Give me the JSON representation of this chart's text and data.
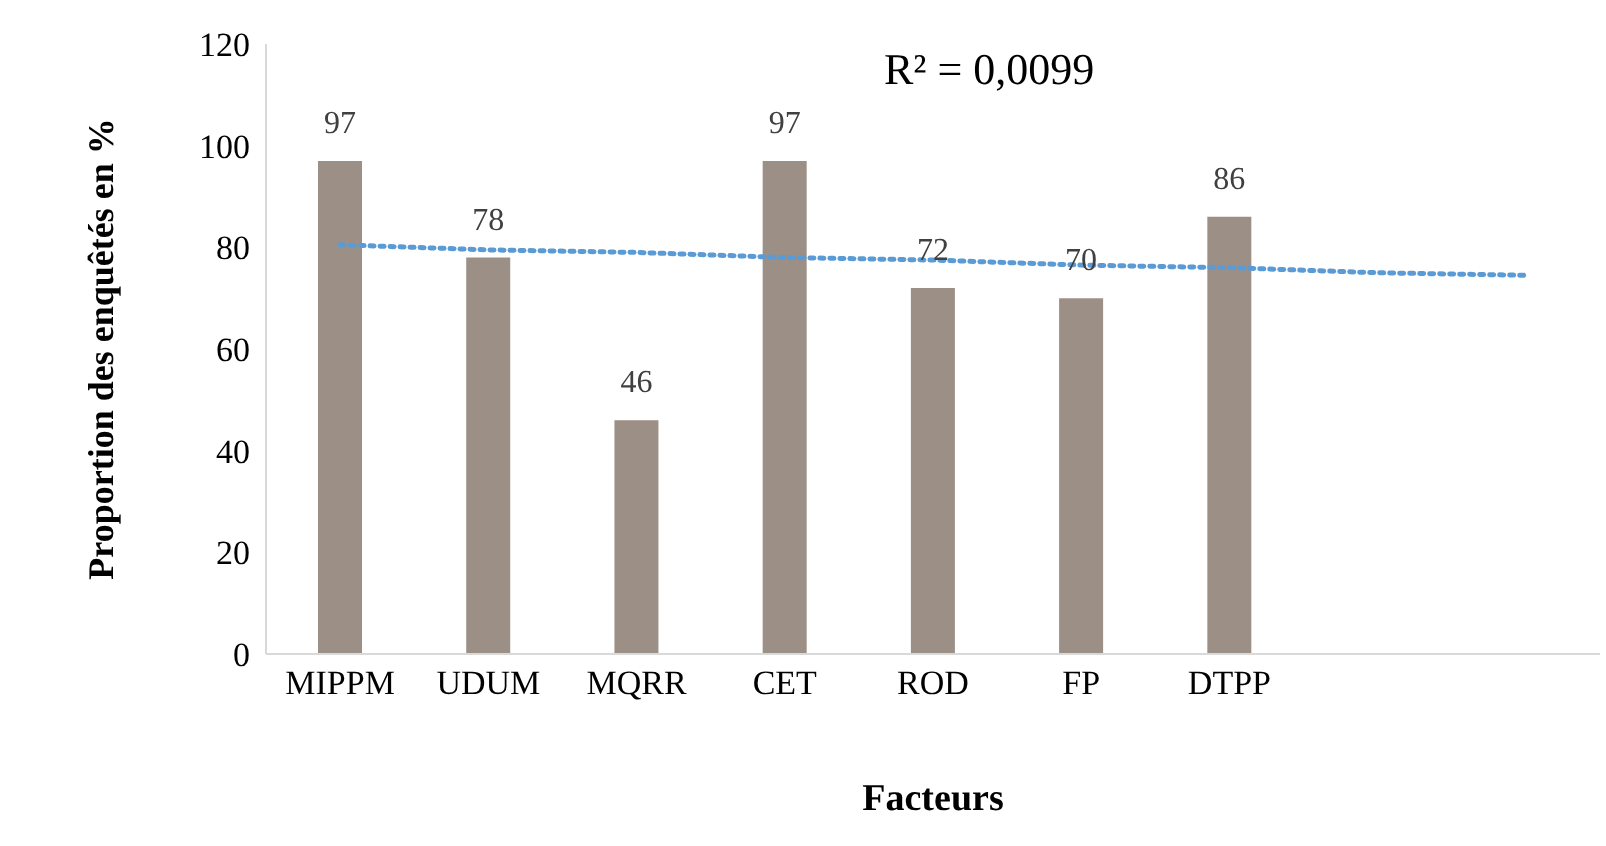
{
  "chart_data": {
    "type": "bar",
    "xlabel": "Facteurs",
    "ylabel": "Proportion des enquêtés en %",
    "categories": [
      "MIPPM",
      "UDUM",
      "MQRR",
      "CET",
      "ROD",
      "FP",
      "DTPP",
      null,
      null
    ],
    "series": [
      {
        "color": "#9c8f86",
        "values": [
          97,
          78,
          46,
          97,
          72,
          70,
          86,
          null,
          null
        ],
        "value_labels": [
          "97",
          "78",
          "46",
          "97",
          "72",
          "70",
          "86",
          null,
          null
        ]
      },
      {
        "type": "line",
        "color": "#5b9bd5",
        "line_style": "dotted",
        "marker": "none",
        "values": [
          80.5,
          79.5,
          79,
          78,
          77.5,
          76.5,
          76,
          75,
          74.5
        ]
      }
    ],
    "ylim": [
      0,
      120
    ],
    "yticks": [
      0,
      20,
      40,
      60,
      80,
      100,
      120
    ],
    "annotations": [
      "R² = 0,0099"
    ]
  }
}
